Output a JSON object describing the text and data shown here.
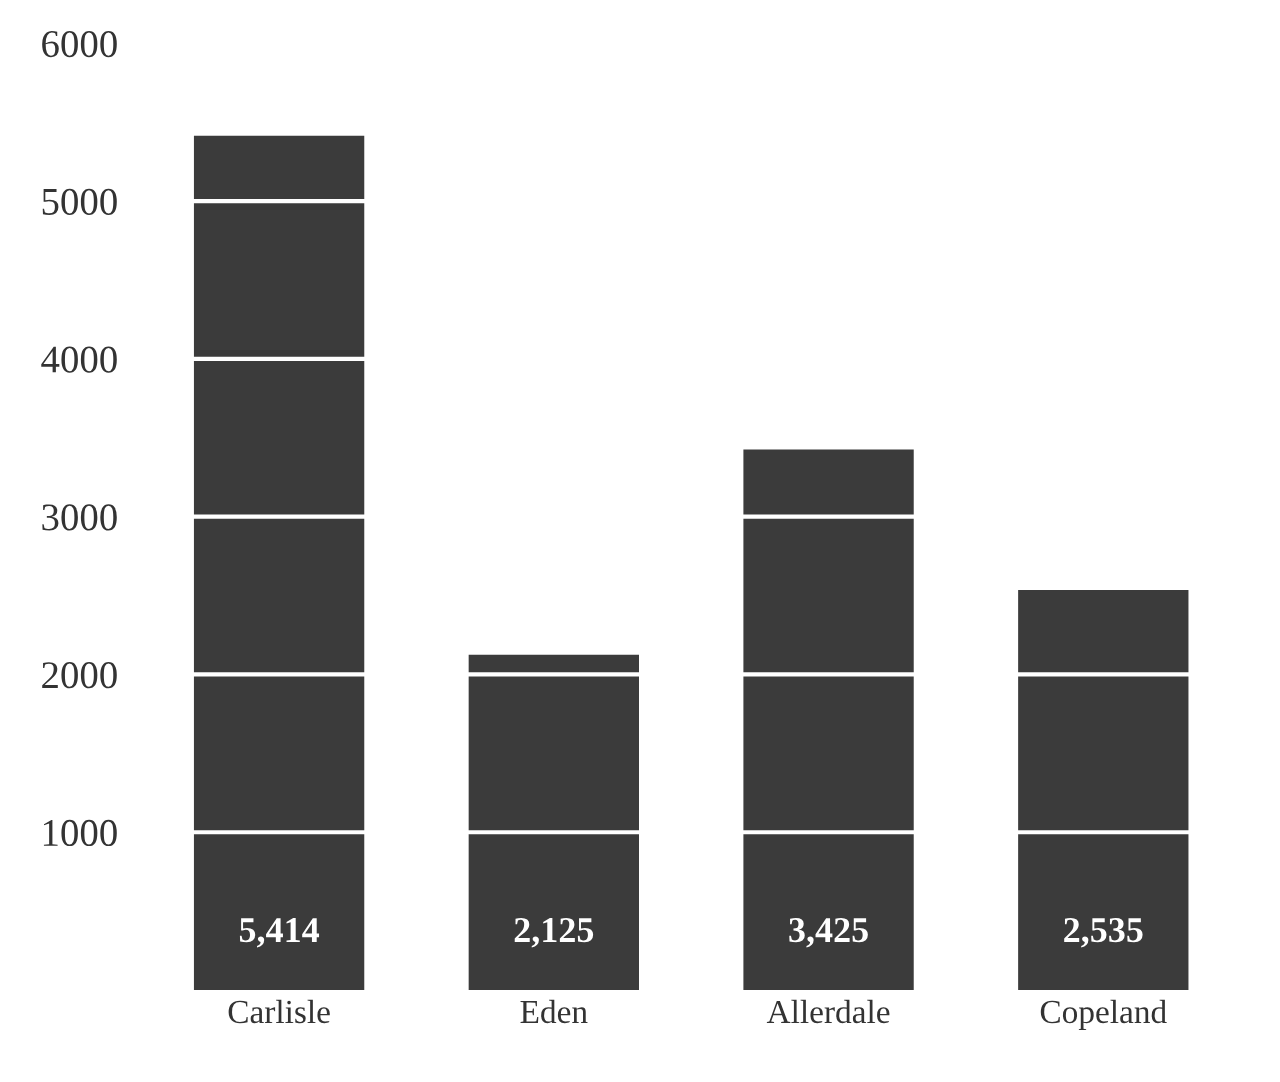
{
  "chart_data": {
    "type": "bar",
    "categories": [
      "Carlisle",
      "Eden",
      "Allerdale",
      "Copeland"
    ],
    "values": [
      5414,
      2125,
      3425,
      2535
    ],
    "value_labels": [
      "5,414",
      "2,125",
      "3,425",
      "2,535"
    ],
    "color": "#3b3b3b",
    "ylim": [
      0,
      6000
    ],
    "yticks": [
      1000,
      2000,
      3000,
      4000,
      5000,
      6000
    ],
    "grid": "y"
  }
}
